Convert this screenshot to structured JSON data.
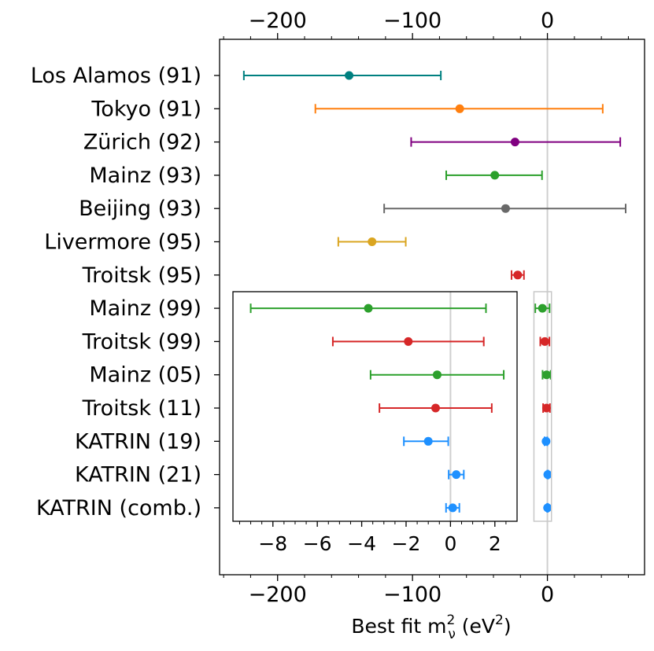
{
  "chart_data": {
    "type": "scatter",
    "title": "",
    "xlabel": {
      "prefix": "Best fit m",
      "sup": "2",
      "sub": "ν",
      "suffix_open": " (eV",
      "suffix_sup": "2",
      "suffix_close": ")"
    },
    "ylabel": "",
    "xlim": [
      -243,
      72
    ],
    "xticks": [
      -200,
      -100,
      0
    ],
    "xtick_labels": [
      "−200",
      "−100",
      "0"
    ],
    "grid": false,
    "legend": "none",
    "reference_line_x": 0,
    "experiments": [
      {
        "name": "Los Alamos (91)",
        "value": -147,
        "err_low": 78,
        "err_high": 68,
        "color": "#008080"
      },
      {
        "name": "Tokyo (91)",
        "value": -65,
        "err_low": 107,
        "err_high": 106,
        "color": "#ff7f0e"
      },
      {
        "name": "Zürich (92)",
        "value": -24,
        "err_low": 77,
        "err_high": 78,
        "color": "#800080"
      },
      {
        "name": "Mainz (93)",
        "value": -39,
        "err_low": 36,
        "err_high": 35,
        "color": "#2ca02c"
      },
      {
        "name": "Beijing (93)",
        "value": -31,
        "err_low": 90,
        "err_high": 89,
        "color": "#696969"
      },
      {
        "name": "Livermore (95)",
        "value": -130,
        "err_low": 25,
        "err_high": 25,
        "color": "#daa520"
      },
      {
        "name": "Troitsk (95)",
        "value": -22,
        "err_low": 4.6,
        "err_high": 4.6,
        "color": "#d62728"
      },
      {
        "name": "Mainz (99)",
        "value": -3.7,
        "err_low": 5.3,
        "err_high": 5.3,
        "color": "#2ca02c"
      },
      {
        "name": "Troitsk (99)",
        "value": -1.9,
        "err_low": 3.4,
        "err_high": 3.4,
        "color": "#d62728"
      },
      {
        "name": "Mainz (05)",
        "value": -0.6,
        "err_low": 3.0,
        "err_high": 3.0,
        "color": "#2ca02c"
      },
      {
        "name": "Troitsk (11)",
        "value": -0.67,
        "err_low": 2.53,
        "err_high": 2.53,
        "color": "#d62728"
      },
      {
        "name": "KATRIN (19)",
        "value": -1.0,
        "err_low": 1.1,
        "err_high": 0.9,
        "color": "#1e90ff"
      },
      {
        "name": "KATRIN (21)",
        "value": 0.26,
        "err_low": 0.34,
        "err_high": 0.34,
        "color": "#1e90ff"
      },
      {
        "name": "KATRIN (comb.)",
        "value": 0.1,
        "err_low": 0.3,
        "err_high": 0.3,
        "color": "#1e90ff"
      }
    ],
    "inset": {
      "xlim": [
        -9.8,
        3.0
      ],
      "xticks": [
        -8,
        -6,
        -4,
        -2,
        0,
        2
      ],
      "xtick_labels": [
        "−8",
        "−6",
        "−4",
        "−2",
        "0",
        "2"
      ],
      "first_row": "Mainz (99)",
      "zoom_region_x": [
        -10,
        3
      ]
    }
  }
}
